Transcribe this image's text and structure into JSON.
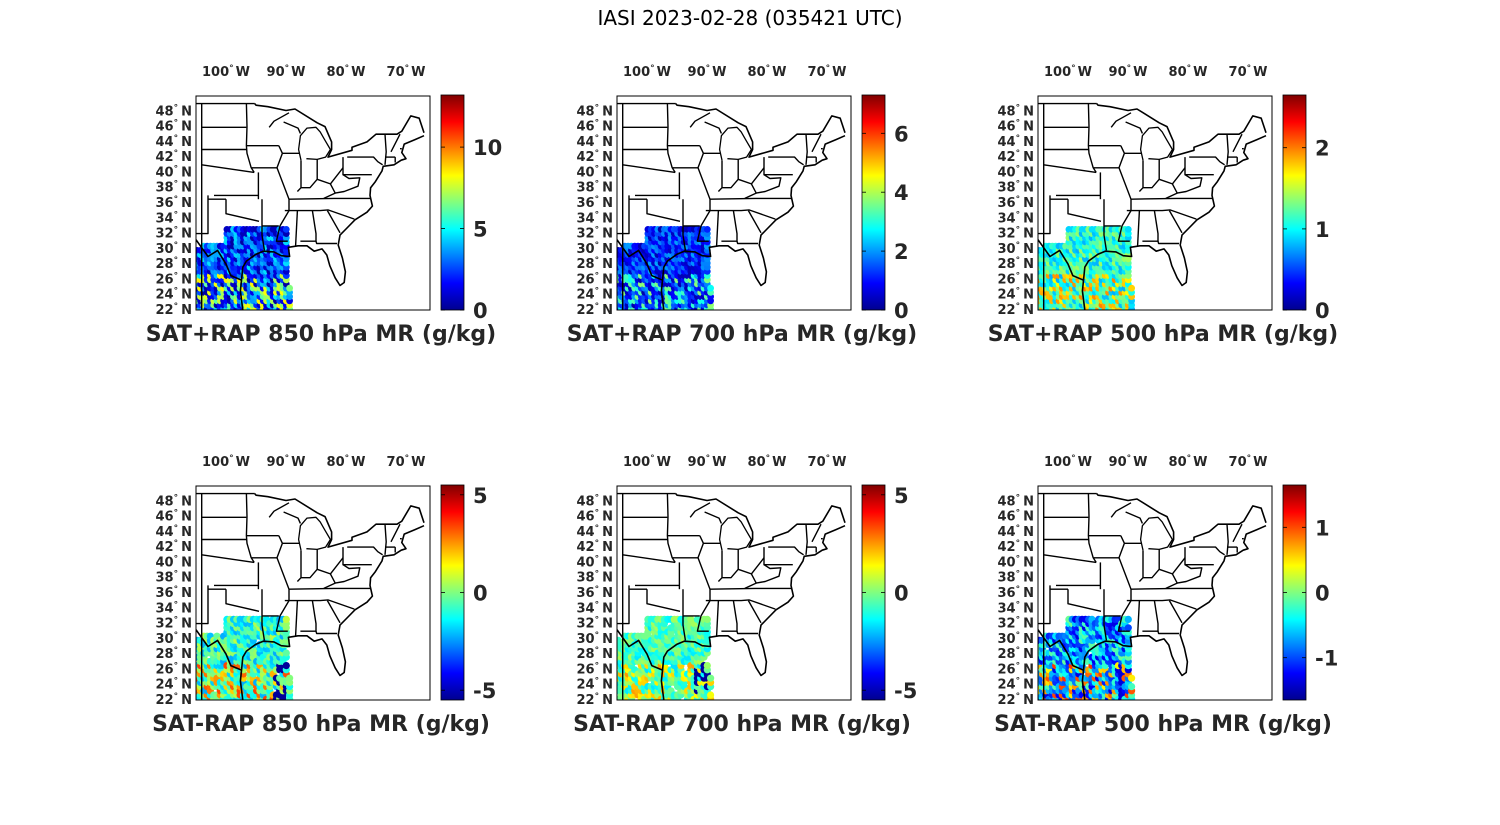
{
  "figure": {
    "title": "IASI 2023-02-28 (035421 UTC)"
  },
  "axes": {
    "lon_ticks": [
      {
        "value": -100,
        "label": "100",
        "hemi": "W"
      },
      {
        "value": -90,
        "label": "90",
        "hemi": "W"
      },
      {
        "value": -80,
        "label": "80",
        "hemi": "W"
      },
      {
        "value": -70,
        "label": "70",
        "hemi": "W"
      }
    ],
    "lat_ticks": [
      {
        "value": 48,
        "label": "48",
        "hemi": "N"
      },
      {
        "value": 46,
        "label": "46",
        "hemi": "N"
      },
      {
        "value": 44,
        "label": "44",
        "hemi": "N"
      },
      {
        "value": 42,
        "label": "42",
        "hemi": "N"
      },
      {
        "value": 40,
        "label": "40",
        "hemi": "N"
      },
      {
        "value": 38,
        "label": "38",
        "hemi": "N"
      },
      {
        "value": 36,
        "label": "36",
        "hemi": "N"
      },
      {
        "value": 34,
        "label": "34",
        "hemi": "N"
      },
      {
        "value": 32,
        "label": "32",
        "hemi": "N"
      },
      {
        "value": 30,
        "label": "30",
        "hemi": "N"
      },
      {
        "value": 28,
        "label": "28",
        "hemi": "N"
      },
      {
        "value": 26,
        "label": "26",
        "hemi": "N"
      },
      {
        "value": 24,
        "label": "24",
        "hemi": "N"
      },
      {
        "value": 22,
        "label": "22",
        "hemi": "N"
      }
    ],
    "map_extent": {
      "lon": [
        -105,
        -66
      ],
      "lat": [
        22,
        50
      ]
    },
    "colormap": "jet",
    "colormap_colors": [
      "#00008f",
      "#0000ff",
      "#0080ff",
      "#00ffff",
      "#80ff80",
      "#ffff00",
      "#ff8000",
      "#ff0000",
      "#800000"
    ]
  },
  "panels": [
    {
      "id": "sat-rap-850",
      "title": "SAT+RAP 850 hPa MR (g/kg)",
      "colorbar": {
        "min": 0,
        "max": 13.2,
        "ticks": [
          {
            "value": 0,
            "label": "0"
          },
          {
            "value": 5,
            "label": "5"
          },
          {
            "value": 10,
            "label": "10"
          }
        ]
      },
      "field": {
        "kind": "mr",
        "coverage": "full",
        "typical_value": 2.5,
        "hot_value": 8.5
      }
    },
    {
      "id": "sat-rap-700",
      "title": "SAT+RAP 700 hPa MR (g/kg)",
      "colorbar": {
        "min": 0,
        "max": 7.3,
        "ticks": [
          {
            "value": 0,
            "label": "0"
          },
          {
            "value": 2,
            "label": "2"
          },
          {
            "value": 4,
            "label": "4"
          },
          {
            "value": 6,
            "label": "6"
          }
        ]
      },
      "field": {
        "kind": "mr",
        "coverage": "full",
        "typical_value": 1.2,
        "hot_value": 3.8
      }
    },
    {
      "id": "sat-rap-500",
      "title": "SAT+RAP 500 hPa MR (g/kg)",
      "colorbar": {
        "min": 0,
        "max": 2.65,
        "ticks": [
          {
            "value": 0,
            "label": "0"
          },
          {
            "value": 1,
            "label": "1"
          },
          {
            "value": 2,
            "label": "2"
          }
        ]
      },
      "field": {
        "kind": "mr",
        "coverage": "full",
        "typical_value": 1.1,
        "hot_value": 2.0
      }
    },
    {
      "id": "sat-minus-rap-850",
      "title": "SAT-RAP 850 hPa MR (g/kg)",
      "colorbar": {
        "min": -5.5,
        "max": 5.5,
        "ticks": [
          {
            "value": -5,
            "label": "-5"
          },
          {
            "value": 0,
            "label": "0"
          },
          {
            "value": 5,
            "label": "5"
          }
        ]
      },
      "field": {
        "kind": "diff",
        "coverage": "dots",
        "typical_value": -0.8,
        "hot_value": 3.5
      }
    },
    {
      "id": "sat-minus-rap-700",
      "title": "SAT-RAP 700 hPa MR (g/kg)",
      "colorbar": {
        "min": -5.5,
        "max": 5.5,
        "ticks": [
          {
            "value": -5,
            "label": "-5"
          },
          {
            "value": 0,
            "label": "0"
          },
          {
            "value": 5,
            "label": "5"
          }
        ]
      },
      "field": {
        "kind": "diff",
        "coverage": "dots",
        "typical_value": -0.6,
        "hot_value": 2.5
      }
    },
    {
      "id": "sat-minus-rap-500",
      "title": "SAT-RAP 500 hPa MR (g/kg)",
      "colorbar": {
        "min": -1.65,
        "max": 1.65,
        "ticks": [
          {
            "value": -1,
            "label": "-1"
          },
          {
            "value": 0,
            "label": "0"
          },
          {
            "value": 1,
            "label": "1"
          }
        ]
      },
      "field": {
        "kind": "diff",
        "coverage": "dots",
        "typical_value": -0.7,
        "hot_value": 1.1
      }
    }
  ]
}
